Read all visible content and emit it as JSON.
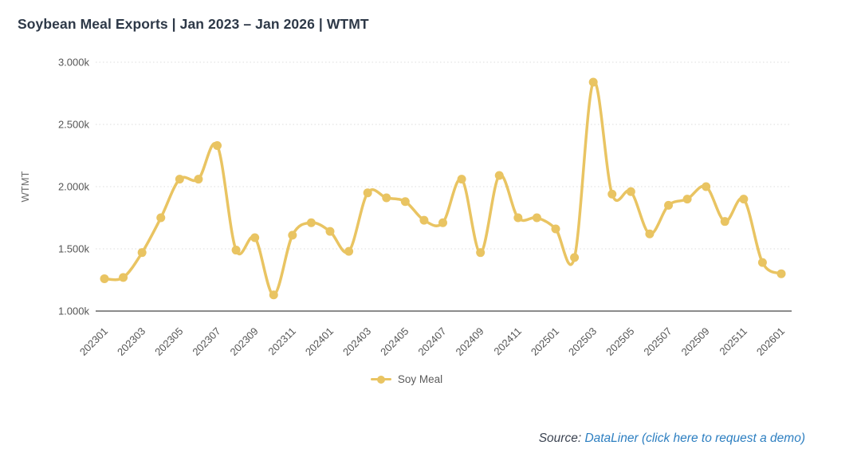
{
  "header": {
    "title": "Soybean Meal Exports | Jan 2023 – Jan 2026 | WTMT"
  },
  "chart_data": {
    "type": "line",
    "title": "Soybean Meal Exports | Jan 2023 – Jan 2026 | WTMT",
    "smooth": true,
    "xlabel": "",
    "ylabel": "WTMT",
    "ylim": [
      1000,
      3000
    ],
    "yticks": [
      {
        "value": 1000,
        "label": "1.000k"
      },
      {
        "value": 1500,
        "label": "1.500k"
      },
      {
        "value": 2000,
        "label": "2.000k"
      },
      {
        "value": 2500,
        "label": "2.500k"
      },
      {
        "value": 3000,
        "label": "3.000k"
      }
    ],
    "x": [
      "202301",
      "202302",
      "202303",
      "202304",
      "202305",
      "202306",
      "202307",
      "202308",
      "202309",
      "202310",
      "202311",
      "202312",
      "202401",
      "202402",
      "202403",
      "202404",
      "202405",
      "202406",
      "202407",
      "202408",
      "202409",
      "202410",
      "202411",
      "202412",
      "202501",
      "202502",
      "202503",
      "202504",
      "202505",
      "202506",
      "202507",
      "202508",
      "202509",
      "202510",
      "202511",
      "202512",
      "202601"
    ],
    "x_tick_every": 2,
    "x_tick_labels": [
      "202301",
      "202303",
      "202305",
      "202307",
      "202309",
      "202311",
      "202401",
      "202403",
      "202405",
      "202407",
      "202409",
      "202411",
      "202501",
      "202503",
      "202505",
      "202507",
      "202509",
      "202511",
      "202601"
    ],
    "series": [
      {
        "name": "Soy Meal",
        "color": "#e9c462",
        "values": [
          1260,
          1270,
          1470,
          1750,
          2060,
          2060,
          2330,
          1490,
          1590,
          1130,
          1610,
          1710,
          1640,
          1480,
          1950,
          1910,
          1880,
          1730,
          1710,
          2060,
          1470,
          2090,
          1750,
          1750,
          1660,
          1430,
          2840,
          1940,
          1960,
          1620,
          1850,
          1900,
          2000,
          1720,
          1900,
          1390,
          1300
        ]
      }
    ],
    "grid": {
      "horizontal": true,
      "style": "dotted",
      "color": "#dcdcdc"
    },
    "axis_line_color": "#8c8c8c",
    "tick_text_color": "#565656",
    "legend_position": "bottom-center"
  },
  "legend": {
    "items": [
      {
        "label": "Soy Meal",
        "color": "#e9c462"
      }
    ]
  },
  "source": {
    "prefix": "Source: ",
    "link_text": "DataLiner (click here to request a demo)"
  },
  "colors": {
    "title": "#2e3948",
    "line": "#e9c462",
    "link": "#2d7fc1",
    "grid": "#dcdcdc",
    "axis": "#8c8c8c"
  }
}
